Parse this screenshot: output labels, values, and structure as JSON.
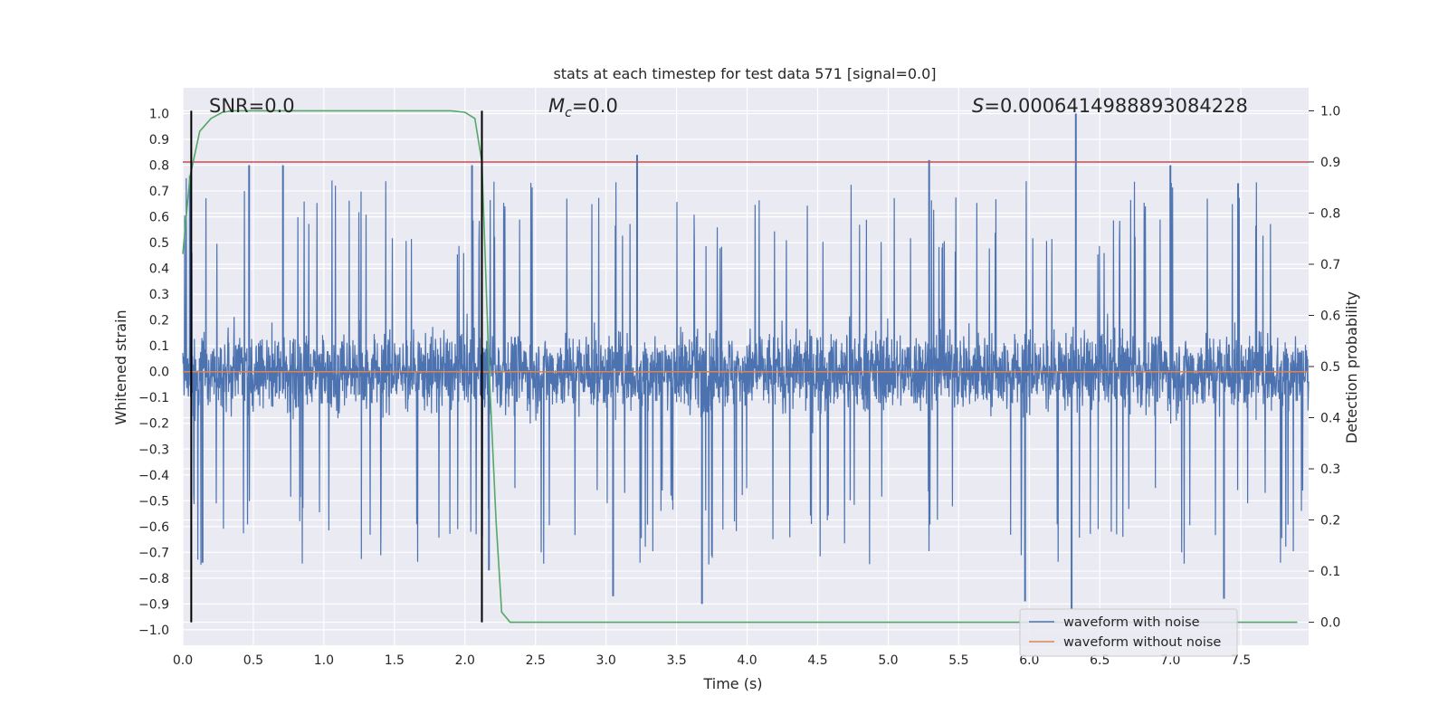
{
  "chart_data": {
    "type": "line",
    "title": "stats at each timestep for test data 571 [signal=0.0]",
    "xlabel": "Time (s)",
    "ylabel": "Whitened strain",
    "y2label": "Detection probability",
    "xlim": [
      0.0,
      7.98
    ],
    "ylim": [
      -1.06,
      1.1
    ],
    "y2lim": [
      -0.045,
      1.045
    ],
    "x_ticks": [
      "0.0",
      "0.5",
      "1.0",
      "1.5",
      "2.0",
      "2.5",
      "3.0",
      "3.5",
      "4.0",
      "4.5",
      "5.0",
      "5.5",
      "6.0",
      "6.5",
      "7.0",
      "7.5"
    ],
    "y_ticks": [
      "1.0",
      "0.9",
      "0.8",
      "0.7",
      "0.6",
      "0.5",
      "0.4",
      "0.3",
      "0.2",
      "0.1",
      "0.0",
      "−0.1",
      "−0.2",
      "−0.3",
      "−0.4",
      "−0.5",
      "−0.6",
      "−0.7",
      "−0.8",
      "−0.9",
      "−1.0"
    ],
    "y2_ticks": [
      "1.0",
      "0.9",
      "0.8",
      "0.7",
      "0.6",
      "0.5",
      "0.4",
      "0.3",
      "0.2",
      "0.1",
      "0.0"
    ],
    "grid": true,
    "legend_position": "lower-right",
    "annotations": {
      "snr": "SNR=0.0",
      "mc": "=0.0",
      "mc_symbol": "M",
      "mc_sub": "c",
      "s": "=0.000641498889308422​8",
      "s_symbol": "S"
    },
    "series": [
      {
        "name": "waveform with noise",
        "color": "#4c72b0",
        "description_shape": "dense noise band",
        "band_core": [
          -0.2,
          0.2
        ],
        "band_typical": [
          -0.4,
          0.42
        ],
        "x_range": [
          0.0,
          7.98
        ],
        "peaks": [
          [
            0.05,
            0.76
          ],
          [
            0.47,
            0.8
          ],
          [
            0.71,
            0.8
          ],
          [
            2.05,
            0.8
          ],
          [
            3.22,
            0.84
          ],
          [
            5.29,
            0.82
          ],
          [
            6.33,
            1.0
          ],
          [
            7.0,
            0.8
          ],
          [
            7.48,
            0.73
          ],
          [
            3.05,
            -0.87
          ],
          [
            3.68,
            -0.9
          ],
          [
            5.97,
            -0.89
          ],
          [
            6.3,
            -0.92
          ],
          [
            7.38,
            -0.88
          ],
          [
            0.14,
            -0.74
          ],
          [
            2.17,
            -0.77
          ]
        ]
      },
      {
        "name": "waveform without noise",
        "color": "#dd8452",
        "x": [
          0.0,
          7.98
        ],
        "y": [
          0.0,
          0.0
        ]
      },
      {
        "name": "detection probability",
        "color": "#55a868",
        "axis": "right",
        "x": [
          0.0,
          0.05,
          0.12,
          0.2,
          0.28,
          0.35,
          0.5,
          1.0,
          1.5,
          1.9,
          2.0,
          2.07,
          2.12,
          2.17,
          2.22,
          2.26,
          2.32,
          2.5,
          3.0,
          7.9
        ],
        "y": [
          0.72,
          0.87,
          0.96,
          0.985,
          0.997,
          1.0,
          1.0,
          1.0,
          1.0,
          1.0,
          0.997,
          0.985,
          0.9,
          0.5,
          0.2,
          0.02,
          0.0,
          0.0,
          0.0,
          0.0
        ]
      }
    ],
    "threshold": {
      "color": "#c44e52",
      "y2": 0.9
    },
    "vertical_lines": {
      "color": "#000000",
      "x": [
        0.06,
        2.12
      ]
    }
  }
}
